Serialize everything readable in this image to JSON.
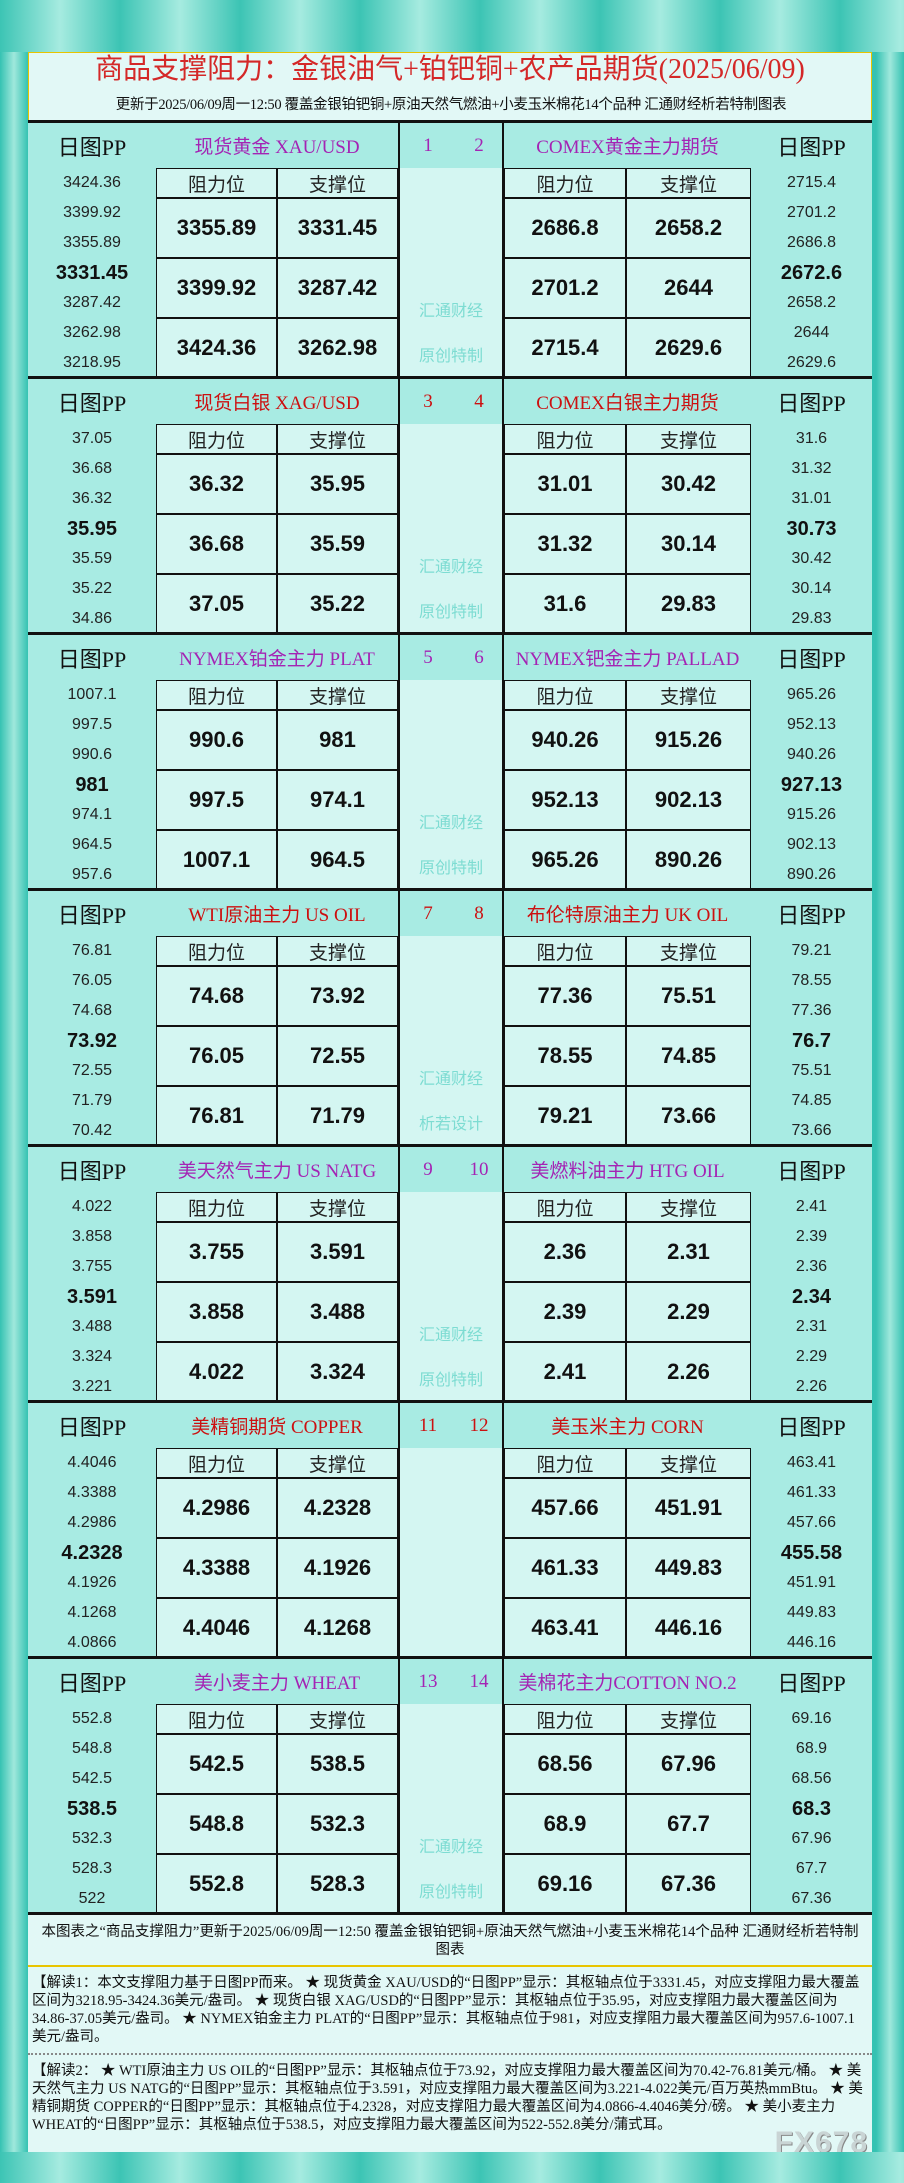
{
  "header": {
    "title": "商品支撑阻力：金银油气+铂钯铜+农产品期货(2025/06/09)",
    "subtitle": "更新于2025/06/09周一12:50  覆盖金银铂钯铜+原油天然气燃油+小麦玉米棉花14个品种  汇通财经析若特制图表"
  },
  "labels": {
    "pp": "日图PP",
    "resist": "阻力位",
    "support": "支撑位"
  },
  "colors": {
    "purple": "#a424b4",
    "red": "#cc1010"
  },
  "blocks": [
    {
      "color": "purple",
      "left": {
        "title": "现货黄金 XAU/USD",
        "num": "1",
        "pp": [
          "3424.36",
          "3399.92",
          "3355.89",
          "3331.45",
          "3287.42",
          "3262.98",
          "3218.95"
        ],
        "rows": [
          [
            "3355.89",
            "3331.45"
          ],
          [
            "3399.92",
            "3287.42"
          ],
          [
            "3424.36",
            "3262.98"
          ]
        ]
      },
      "right": {
        "title": "COMEX黄金主力期货",
        "num": "2",
        "pp": [
          "2715.4",
          "2701.2",
          "2686.8",
          "2672.6",
          "2658.2",
          "2644",
          "2629.6"
        ],
        "rows": [
          [
            "2686.8",
            "2658.2"
          ],
          [
            "2701.2",
            "2644"
          ],
          [
            "2715.4",
            "2629.6"
          ]
        ]
      },
      "wm": [
        "汇通财经",
        "原创特制"
      ]
    },
    {
      "color": "red",
      "left": {
        "title": "现货白银 XAG/USD",
        "num": "3",
        "pp": [
          "37.05",
          "36.68",
          "36.32",
          "35.95",
          "35.59",
          "35.22",
          "34.86"
        ],
        "rows": [
          [
            "36.32",
            "35.95"
          ],
          [
            "36.68",
            "35.59"
          ],
          [
            "37.05",
            "35.22"
          ]
        ]
      },
      "right": {
        "title": "COMEX白银主力期货",
        "num": "4",
        "pp": [
          "31.6",
          "31.32",
          "31.01",
          "30.73",
          "30.42",
          "30.14",
          "29.83"
        ],
        "rows": [
          [
            "31.01",
            "30.42"
          ],
          [
            "31.32",
            "30.14"
          ],
          [
            "31.6",
            "29.83"
          ]
        ]
      },
      "wm": [
        "汇通财经",
        "原创特制"
      ]
    },
    {
      "color": "purple",
      "left": {
        "title": "NYMEX铂金主力 PLAT",
        "num": "5",
        "pp": [
          "1007.1",
          "997.5",
          "990.6",
          "981",
          "974.1",
          "964.5",
          "957.6"
        ],
        "rows": [
          [
            "990.6",
            "981"
          ],
          [
            "997.5",
            "974.1"
          ],
          [
            "1007.1",
            "964.5"
          ]
        ]
      },
      "right": {
        "title": "NYMEX钯金主力 PALLAD",
        "num": "6",
        "pp": [
          "965.26",
          "952.13",
          "940.26",
          "927.13",
          "915.26",
          "902.13",
          "890.26"
        ],
        "rows": [
          [
            "940.26",
            "915.26"
          ],
          [
            "952.13",
            "902.13"
          ],
          [
            "965.26",
            "890.26"
          ]
        ]
      },
      "wm": [
        "汇通财经",
        "原创特制"
      ]
    },
    {
      "color": "red",
      "left": {
        "title": "WTI原油主力 US OIL",
        "num": "7",
        "pp": [
          "76.81",
          "76.05",
          "74.68",
          "73.92",
          "72.55",
          "71.79",
          "70.42"
        ],
        "rows": [
          [
            "74.68",
            "73.92"
          ],
          [
            "76.05",
            "72.55"
          ],
          [
            "76.81",
            "71.79"
          ]
        ]
      },
      "right": {
        "title": "布伦特原油主力 UK OIL",
        "num": "8",
        "pp": [
          "79.21",
          "78.55",
          "77.36",
          "76.7",
          "75.51",
          "74.85",
          "73.66"
        ],
        "rows": [
          [
            "77.36",
            "75.51"
          ],
          [
            "78.55",
            "74.85"
          ],
          [
            "79.21",
            "73.66"
          ]
        ]
      },
      "wm": [
        "汇通财经",
        "析若设计"
      ]
    },
    {
      "color": "purple",
      "left": {
        "title": "美天然气主力 US NATG",
        "num": "9",
        "pp": [
          "4.022",
          "3.858",
          "3.755",
          "3.591",
          "3.488",
          "3.324",
          "3.221"
        ],
        "rows": [
          [
            "3.755",
            "3.591"
          ],
          [
            "3.858",
            "3.488"
          ],
          [
            "4.022",
            "3.324"
          ]
        ]
      },
      "right": {
        "title": "美燃料油主力 HTG OIL",
        "num": "10",
        "pp": [
          "2.41",
          "2.39",
          "2.36",
          "2.34",
          "2.31",
          "2.29",
          "2.26"
        ],
        "rows": [
          [
            "2.36",
            "2.31"
          ],
          [
            "2.39",
            "2.29"
          ],
          [
            "2.41",
            "2.26"
          ]
        ]
      },
      "wm": [
        "汇通财经",
        "原创特制"
      ]
    },
    {
      "color": "red",
      "left": {
        "title": "美精铜期货 COPPER",
        "num": "11",
        "pp": [
          "4.4046",
          "4.3388",
          "4.2986",
          "4.2328",
          "4.1926",
          "4.1268",
          "4.0866"
        ],
        "rows": [
          [
            "4.2986",
            "4.2328"
          ],
          [
            "4.3388",
            "4.1926"
          ],
          [
            "4.4046",
            "4.1268"
          ]
        ]
      },
      "right": {
        "title": "美玉米主力 CORN",
        "num": "12",
        "pp": [
          "463.41",
          "461.33",
          "457.66",
          "455.58",
          "451.91",
          "449.83",
          "446.16"
        ],
        "rows": [
          [
            "457.66",
            "451.91"
          ],
          [
            "461.33",
            "449.83"
          ],
          [
            "463.41",
            "446.16"
          ]
        ]
      },
      "wm": []
    },
    {
      "color": "purple",
      "left": {
        "title": "美小麦主力 WHEAT",
        "num": "13",
        "pp": [
          "552.8",
          "548.8",
          "542.5",
          "538.5",
          "532.3",
          "528.3",
          "522"
        ],
        "rows": [
          [
            "542.5",
            "538.5"
          ],
          [
            "548.8",
            "532.3"
          ],
          [
            "552.8",
            "528.3"
          ]
        ]
      },
      "right": {
        "title": "美棉花主力COTTON NO.2",
        "num": "14",
        "pp": [
          "69.16",
          "68.9",
          "68.56",
          "68.3",
          "67.96",
          "67.7",
          "67.36"
        ],
        "rows": [
          [
            "68.56",
            "67.96"
          ],
          [
            "68.9",
            "67.7"
          ],
          [
            "69.16",
            "67.36"
          ]
        ]
      },
      "wm": [
        "汇通财经",
        "原创特制"
      ]
    }
  ],
  "footer": {
    "note0": "本图表之“商品支撑阻力”更新于2025/06/09周一12:50 覆盖金银铂钯铜+原油天然气燃油+小麦玉米棉花14个品种 汇通财经析若特制图表",
    "note1": "【解读1：本文支撑阻力基于日图PP而来。 ★ 现货黄金 XAU/USD的“日图PP”显示：其枢轴点位于3331.45，对应支撑阻力最大覆盖区间为3218.95-3424.36美元/盎司。 ★ 现货白银 XAG/USD的“日图PP”显示：其枢轴点位于35.95，对应支撑阻力最大覆盖区间为34.86-37.05美元/盎司。 ★ NYMEX铂金主力 PLAT的“日图PP”显示：其枢轴点位于981，对应支撑阻力最大覆盖区间为957.6-1007.1美元/盎司。",
    "note2": "【解读2： ★ WTI原油主力 US OIL的“日图PP”显示：其枢轴点位于73.92，对应支撑阻力最大覆盖区间为70.42-76.81美元/桶。 ★ 美天然气主力 US NATG的“日图PP”显示：其枢轴点位于3.591，对应支撑阻力最大覆盖区间为3.221-4.022美元/百万英热mmBtu。 ★ 美精铜期货 COPPER的“日图PP”显示：其枢轴点位于4.2328，对应支撑阻力最大覆盖区间为4.0866-4.4046美分/磅。 ★ 美小麦主力 WHEAT的“日图PP”显示：其枢轴点位于538.5，对应支撑阻力最大覆盖区间为522-552.8美分/蒲式耳。",
    "logo": "FX678"
  }
}
